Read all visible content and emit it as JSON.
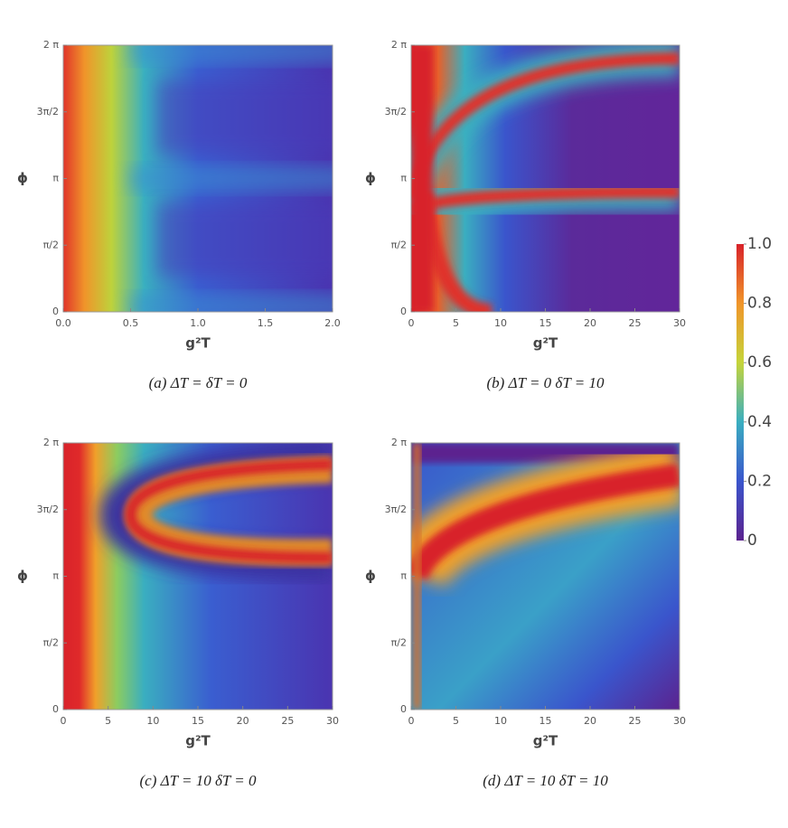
{
  "chart_data": [
    {
      "type": "heatmap",
      "caption": "(a) ΔT = δT = 0",
      "xlabel": "g²T",
      "ylabel": "ϕ",
      "xlim": [
        0,
        2
      ],
      "ylim": [
        0,
        6.2832
      ],
      "xticks": [
        {
          "value": 0,
          "label": "0.0"
        },
        0.5,
        {
          "value": 1,
          "label": "1.0"
        },
        1.5,
        {
          "value": 2,
          "label": "2.0"
        }
      ],
      "yticks": [
        {
          "value": 0,
          "label": "0"
        },
        {
          "value": 1.5708,
          "label": "π/2"
        },
        {
          "value": 3.1416,
          "label": "π"
        },
        {
          "value": 4.7124,
          "label": "3π/2"
        },
        {
          "value": 6.2832,
          "label": "2 π"
        }
      ]
    },
    {
      "type": "heatmap",
      "caption": "(b) ΔT = 0 δT = 10",
      "xlabel": "g²T",
      "ylabel": "ϕ",
      "xlim": [
        0,
        30
      ],
      "ylim": [
        0,
        6.2832
      ],
      "xticks": [
        0,
        5,
        10,
        15,
        20,
        25,
        30
      ],
      "yticks": [
        {
          "value": 0,
          "label": "0"
        },
        {
          "value": 1.5708,
          "label": "π/2"
        },
        {
          "value": 3.1416,
          "label": "π"
        },
        {
          "value": 4.7124,
          "label": "3π/2"
        },
        {
          "value": 6.2832,
          "label": "2 π"
        }
      ]
    },
    {
      "type": "heatmap",
      "caption": "(c) ΔT = 10 δT = 0",
      "xlabel": "g²T",
      "ylabel": "ϕ",
      "xlim": [
        0,
        30
      ],
      "ylim": [
        0,
        6.2832
      ],
      "xticks": [
        0,
        5,
        10,
        15,
        20,
        25,
        30
      ],
      "yticks": [
        {
          "value": 0,
          "label": "0"
        },
        {
          "value": 1.5708,
          "label": "π/2"
        },
        {
          "value": 3.1416,
          "label": "π"
        },
        {
          "value": 4.7124,
          "label": "3π/2"
        },
        {
          "value": 6.2832,
          "label": "2 π"
        }
      ]
    },
    {
      "type": "heatmap",
      "caption": "(d) ΔT = 10 δT = 10",
      "xlabel": "g²T",
      "ylabel": "ϕ",
      "xlim": [
        0,
        30
      ],
      "ylim": [
        0,
        6.2832
      ],
      "xticks": [
        0,
        5,
        10,
        15,
        20,
        25,
        30
      ],
      "yticks": [
        {
          "value": 0,
          "label": "0"
        },
        {
          "value": 1.5708,
          "label": "π/2"
        },
        {
          "value": 3.1416,
          "label": "π"
        },
        {
          "value": 4.7124,
          "label": "3π/2"
        },
        {
          "value": 6.2832,
          "label": "2 π"
        }
      ]
    }
  ],
  "colorbar": {
    "lim": [
      0,
      1
    ],
    "ticks": [
      0,
      0.2,
      0.4,
      0.6,
      0.8,
      {
        "value": 1,
        "label": "1.0"
      }
    ]
  }
}
